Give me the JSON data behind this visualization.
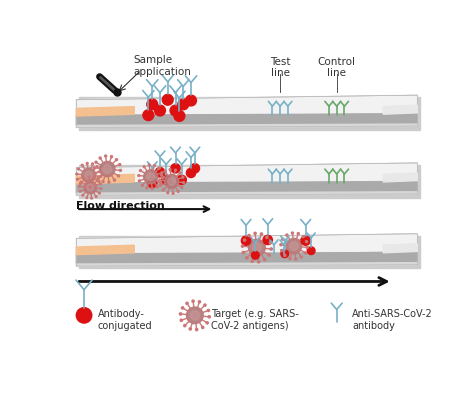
{
  "bg_color": "#ffffff",
  "strip_top_color": "#f2f2f2",
  "strip_membrane_color": "#aaaaaa",
  "strip_shadow_color": "#cccccc",
  "strip_edge_color": "#bbbbbb",
  "sample_pad_color": "#f5c090",
  "absorbent_pad_color": "#e8e8e8",
  "label_sample": "Sample\napplication",
  "label_test": "Test\nline",
  "label_control": "Control\nline",
  "label_flow": "Flow direction",
  "legend_ab_conj": "Antibody-\nconjugated",
  "legend_target": "Target (e.g. SARS-\nCoV-2 antigens)",
  "legend_antisars": "Anti-SARS-CoV-2\nantibody",
  "red_color": "#dd1111",
  "virus_outer": "#b07878",
  "virus_inner": "#cc9999",
  "virus_spike": "#cc7777",
  "ab_blue": "#78b0c8",
  "ab_green": "#68a868",
  "text_color": "#333333"
}
